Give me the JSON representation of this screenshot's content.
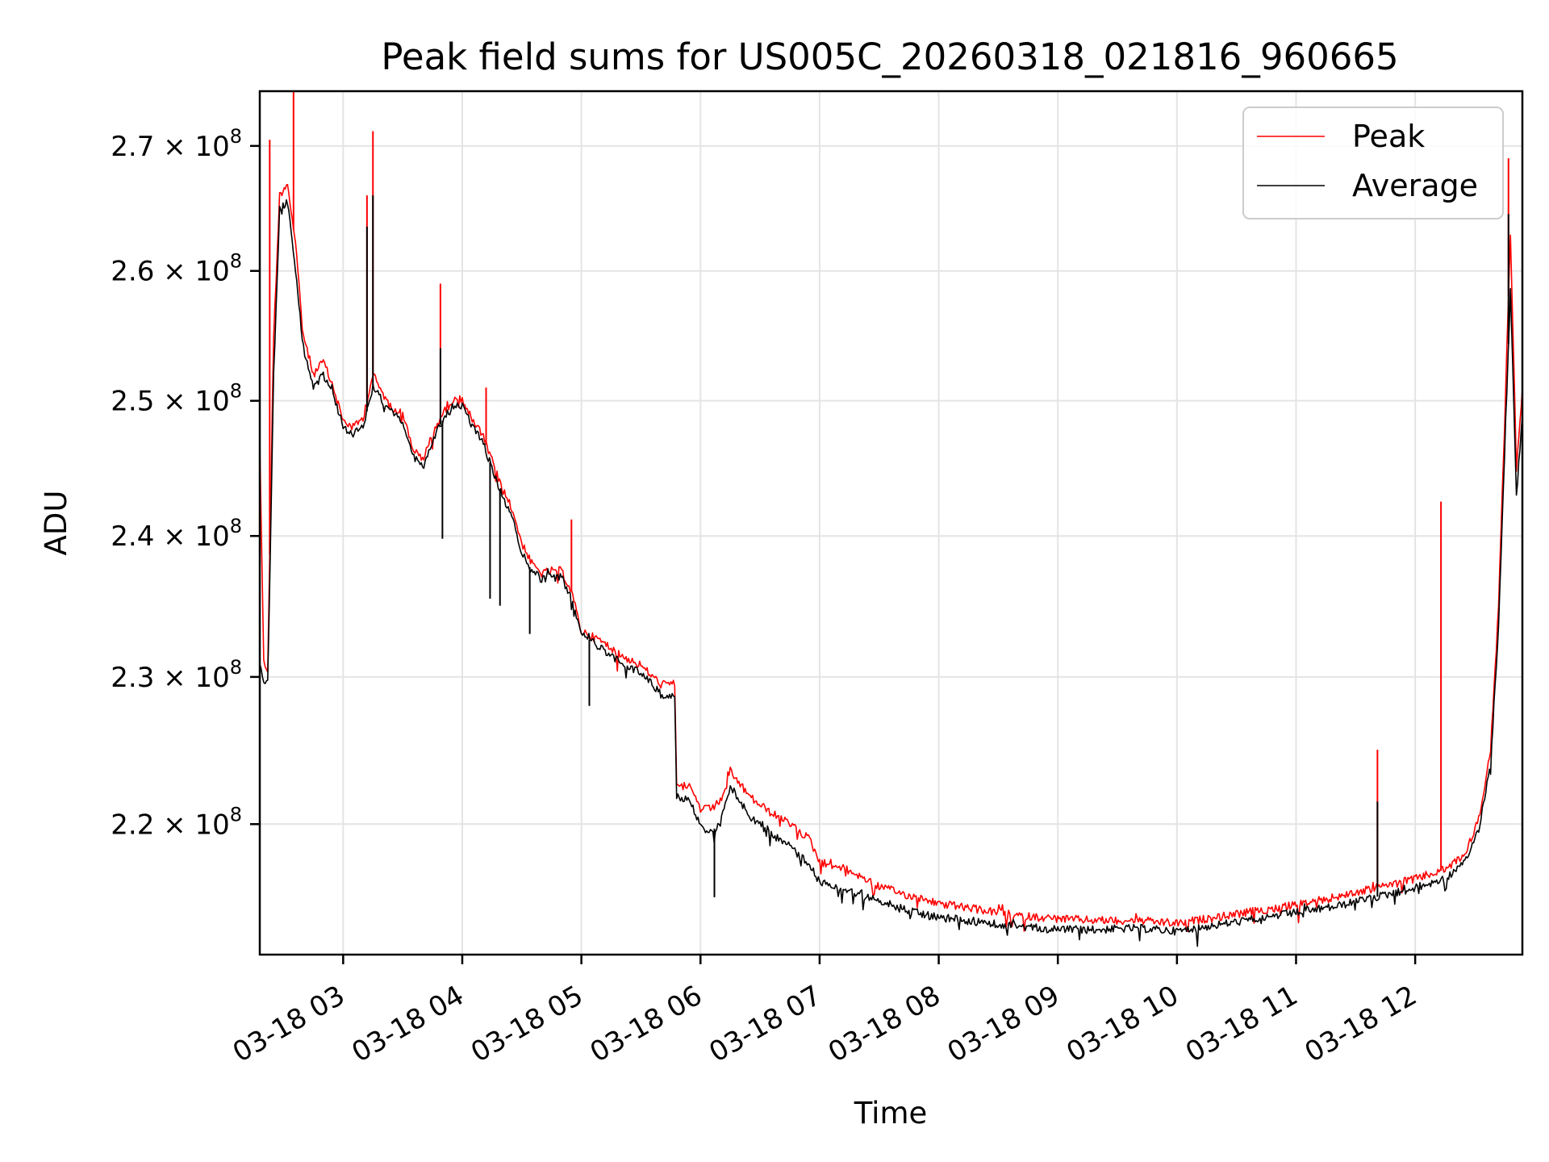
{
  "chart_data": {
    "type": "line",
    "title": "Peak field sums for US005C_20260318_021816_960665",
    "xlabel": "Time",
    "ylabel": "ADU",
    "y_scale": "log",
    "x_range": [
      "2026-03-18 02:18",
      "2026-03-18 12:54"
    ],
    "ylim": [
      211500000,
      274500000
    ],
    "x_ticks": [
      {
        "at": "2026-03-18 03:00",
        "label": "03-18 03"
      },
      {
        "at": "2026-03-18 04:00",
        "label": "03-18 04"
      },
      {
        "at": "2026-03-18 05:00",
        "label": "03-18 05"
      },
      {
        "at": "2026-03-18 06:00",
        "label": "03-18 06"
      },
      {
        "at": "2026-03-18 07:00",
        "label": "03-18 07"
      },
      {
        "at": "2026-03-18 08:00",
        "label": "03-18 08"
      },
      {
        "at": "2026-03-18 09:00",
        "label": "03-18 09"
      },
      {
        "at": "2026-03-18 10:00",
        "label": "03-18 10"
      },
      {
        "at": "2026-03-18 11:00",
        "label": "03-18 11"
      },
      {
        "at": "2026-03-18 12:00",
        "label": "03-18 12"
      }
    ],
    "y_ticks": [
      {
        "value": 220000000,
        "mantissa": "2.2",
        "base": "10",
        "exp": "8"
      },
      {
        "value": 230000000,
        "mantissa": "2.3",
        "base": "10",
        "exp": "8"
      },
      {
        "value": 240000000,
        "mantissa": "2.4",
        "base": "10",
        "exp": "8"
      },
      {
        "value": 250000000,
        "mantissa": "2.5",
        "base": "10",
        "exp": "8"
      },
      {
        "value": 260000000,
        "mantissa": "2.6",
        "base": "10",
        "exp": "8"
      },
      {
        "value": 270000000,
        "mantissa": "2.7",
        "base": "10",
        "exp": "8"
      }
    ],
    "grid": true,
    "legend_position": "top-right",
    "series": [
      {
        "name": "Peak",
        "color": "#ff0000",
        "x": [
          "2026-03-18 02:18",
          "2026-03-18 02:20",
          "2026-03-18 02:22",
          "2026-03-18 02:25",
          "2026-03-18 02:28",
          "2026-03-18 02:32",
          "2026-03-18 02:36",
          "2026-03-18 02:40",
          "2026-03-18 02:45",
          "2026-03-18 02:50",
          "2026-03-18 02:55",
          "2026-03-18 03:00",
          "2026-03-18 03:05",
          "2026-03-18 03:10",
          "2026-03-18 03:15",
          "2026-03-18 03:20",
          "2026-03-18 03:25",
          "2026-03-18 03:30",
          "2026-03-18 03:35",
          "2026-03-18 03:40",
          "2026-03-18 03:45",
          "2026-03-18 03:50",
          "2026-03-18 03:55",
          "2026-03-18 04:00",
          "2026-03-18 04:05",
          "2026-03-18 04:10",
          "2026-03-18 04:15",
          "2026-03-18 04:20",
          "2026-03-18 04:25",
          "2026-03-18 04:30",
          "2026-03-18 04:35",
          "2026-03-18 04:40",
          "2026-03-18 04:45",
          "2026-03-18 04:50",
          "2026-03-18 04:55",
          "2026-03-18 05:00",
          "2026-03-18 05:10",
          "2026-03-18 05:20",
          "2026-03-18 05:30",
          "2026-03-18 05:40",
          "2026-03-18 05:47",
          "2026-03-18 05:48",
          "2026-03-18 05:55",
          "2026-03-18 06:00",
          "2026-03-18 06:05",
          "2026-03-18 06:10",
          "2026-03-18 06:15",
          "2026-03-18 06:25",
          "2026-03-18 06:35",
          "2026-03-18 06:45",
          "2026-03-18 06:55",
          "2026-03-18 07:00",
          "2026-03-18 07:10",
          "2026-03-18 07:20",
          "2026-03-18 07:30",
          "2026-03-18 07:45",
          "2026-03-18 08:00",
          "2026-03-18 08:20",
          "2026-03-18 08:40",
          "2026-03-18 09:00",
          "2026-03-18 09:20",
          "2026-03-18 09:40",
          "2026-03-18 10:00",
          "2026-03-18 10:20",
          "2026-03-18 10:40",
          "2026-03-18 11:00",
          "2026-03-18 11:20",
          "2026-03-18 11:40",
          "2026-03-18 12:00",
          "2026-03-18 12:15",
          "2026-03-18 12:25",
          "2026-03-18 12:32",
          "2026-03-18 12:38",
          "2026-03-18 12:42",
          "2026-03-18 12:45",
          "2026-03-18 12:48",
          "2026-03-18 12:51",
          "2026-03-18 12:54"
        ],
        "y": [
          247000000,
          231000000,
          230500000,
          255000000,
          266000000,
          267000000,
          262000000,
          255000000,
          252000000,
          253000000,
          251000000,
          248500000,
          248000000,
          248700000,
          252000000,
          250500000,
          249500000,
          249000000,
          246500000,
          245500000,
          247500000,
          249000000,
          250000000,
          250200000,
          248500000,
          247500000,
          245500000,
          243500000,
          242000000,
          239500000,
          238000000,
          237300000,
          237500000,
          237500000,
          236000000,
          233200000,
          232500000,
          231500000,
          230800000,
          229500000,
          229500000,
          222800000,
          222500000,
          221000000,
          221000000,
          221500000,
          223500000,
          221800000,
          220800000,
          220000000,
          219000000,
          217500000,
          217200000,
          216600000,
          215900000,
          215300000,
          214800000,
          214400000,
          214000000,
          213800000,
          213700000,
          213700000,
          213500000,
          213900000,
          214300000,
          214700000,
          215200000,
          215800000,
          216400000,
          217000000,
          218000000,
          220300000,
          225000000,
          235000000,
          248000000,
          263000000,
          245000000,
          251000000
        ],
        "spikes": [
          {
            "x": "2026-03-18 02:23",
            "y": 270500000
          },
          {
            "x": "2026-03-18 02:35",
            "y": 274500000
          },
          {
            "x": "2026-03-18 03:12",
            "y": 266000000
          },
          {
            "x": "2026-03-18 03:15",
            "y": 271200000
          },
          {
            "x": "2026-03-18 03:49",
            "y": 259000000
          },
          {
            "x": "2026-03-18 04:12",
            "y": 251000000
          },
          {
            "x": "2026-03-18 04:55",
            "y": 241200000
          },
          {
            "x": "2026-03-18 11:41",
            "y": 225000000
          },
          {
            "x": "2026-03-18 12:13",
            "y": 242500000
          },
          {
            "x": "2026-03-18 12:47",
            "y": 269000000
          }
        ]
      },
      {
        "name": "Average",
        "color": "#000000",
        "x": [
          "2026-03-18 02:18",
          "2026-03-18 02:20",
          "2026-03-18 02:22",
          "2026-03-18 02:25",
          "2026-03-18 02:28",
          "2026-03-18 02:32",
          "2026-03-18 02:36",
          "2026-03-18 02:40",
          "2026-03-18 02:45",
          "2026-03-18 02:50",
          "2026-03-18 02:55",
          "2026-03-18 03:00",
          "2026-03-18 03:05",
          "2026-03-18 03:10",
          "2026-03-18 03:15",
          "2026-03-18 03:20",
          "2026-03-18 03:25",
          "2026-03-18 03:30",
          "2026-03-18 03:35",
          "2026-03-18 03:40",
          "2026-03-18 03:45",
          "2026-03-18 03:50",
          "2026-03-18 03:55",
          "2026-03-18 04:00",
          "2026-03-18 04:05",
          "2026-03-18 04:10",
          "2026-03-18 04:15",
          "2026-03-18 04:20",
          "2026-03-18 04:25",
          "2026-03-18 04:30",
          "2026-03-18 04:35",
          "2026-03-18 04:40",
          "2026-03-18 04:45",
          "2026-03-18 04:50",
          "2026-03-18 04:55",
          "2026-03-18 05:00",
          "2026-03-18 05:10",
          "2026-03-18 05:20",
          "2026-03-18 05:30",
          "2026-03-18 05:40",
          "2026-03-18 05:47",
          "2026-03-18 05:48",
          "2026-03-18 05:55",
          "2026-03-18 06:00",
          "2026-03-18 06:05",
          "2026-03-18 06:10",
          "2026-03-18 06:15",
          "2026-03-18 06:25",
          "2026-03-18 06:35",
          "2026-03-18 06:45",
          "2026-03-18 06:55",
          "2026-03-18 07:00",
          "2026-03-18 07:10",
          "2026-03-18 07:20",
          "2026-03-18 07:30",
          "2026-03-18 07:45",
          "2026-03-18 08:00",
          "2026-03-18 08:20",
          "2026-03-18 08:40",
          "2026-03-18 09:00",
          "2026-03-18 09:20",
          "2026-03-18 09:40",
          "2026-03-18 10:00",
          "2026-03-18 10:20",
          "2026-03-18 10:40",
          "2026-03-18 11:00",
          "2026-03-18 11:20",
          "2026-03-18 11:40",
          "2026-03-18 12:00",
          "2026-03-18 12:15",
          "2026-03-18 12:25",
          "2026-03-18 12:32",
          "2026-03-18 12:38",
          "2026-03-18 12:42",
          "2026-03-18 12:45",
          "2026-03-18 12:48",
          "2026-03-18 12:51",
          "2026-03-18 12:54"
        ],
        "y": [
          231000000,
          229500000,
          229500000,
          252000000,
          265000000,
          265500000,
          260000000,
          254000000,
          251000000,
          252000000,
          250500000,
          248000000,
          247500000,
          248000000,
          251000000,
          250000000,
          249000000,
          248500000,
          246000000,
          245000000,
          247000000,
          248500000,
          249500000,
          249700000,
          248000000,
          247000000,
          245000000,
          243000000,
          241500000,
          238800000,
          237500000,
          236900000,
          237000000,
          237000000,
          235600000,
          233000000,
          232000000,
          231000000,
          230300000,
          228800000,
          228700000,
          221800000,
          221500000,
          219800000,
          219500000,
          220000000,
          222600000,
          220500000,
          219400000,
          218500000,
          217300000,
          216200000,
          215900000,
          215400000,
          214900000,
          214300000,
          213900000,
          213600000,
          213300000,
          213100000,
          213100000,
          213200000,
          213000000,
          213400000,
          213800000,
          214200000,
          214600000,
          215200000,
          215800000,
          216400000,
          217400000,
          219700000,
          224000000,
          233500000,
          246000000,
          258500000,
          243000000,
          249000000
        ],
        "spikes": [
          {
            "x": "2026-03-18 03:12",
            "y": 263500000
          },
          {
            "x": "2026-03-18 03:15",
            "y": 266000000
          },
          {
            "x": "2026-03-18 03:49",
            "y": 254000000
          },
          {
            "x": "2026-03-18 11:41",
            "y": 221500000
          },
          {
            "x": "2026-03-18 12:47",
            "y": 264500000
          }
        ],
        "dips": [
          {
            "x": "2026-03-18 03:50",
            "y": 239800000
          },
          {
            "x": "2026-03-18 04:14",
            "y": 235500000
          },
          {
            "x": "2026-03-18 04:19",
            "y": 235000000
          },
          {
            "x": "2026-03-18 04:34",
            "y": 233000000
          },
          {
            "x": "2026-03-18 05:04",
            "y": 228000000
          },
          {
            "x": "2026-03-18 06:07",
            "y": 215200000
          }
        ]
      }
    ]
  }
}
